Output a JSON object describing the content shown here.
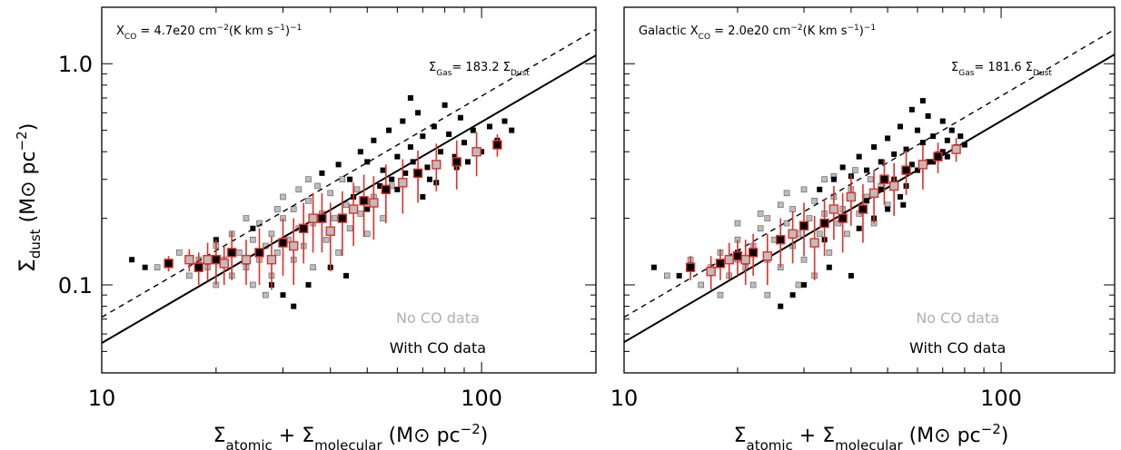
{
  "chart_data": [
    {
      "type": "scatter",
      "xscale": "log",
      "yscale": "log",
      "xlim": [
        10,
        200
      ],
      "ylim": [
        0.04,
        1.8
      ],
      "xticks": [
        10,
        100
      ],
      "xtick_labels": [
        "10",
        "100"
      ],
      "yticks": [
        0.1,
        1.0
      ],
      "ytick_labels": [
        "0.1",
        "1.0"
      ],
      "xlabel": "Σatomic + Σmolecular (M⊙ pc−2)",
      "ylabel": "Σdust (M⊙ pc−2)",
      "annotation": "XCO = 4.7e20 cm−2(K km s−1)−1",
      "fit_label": "ΣGas= 183.2 ΣDust",
      "fit_ratio": 183.2,
      "comparison_ratio": 140,
      "legend": [
        "No CO data",
        "With CO data"
      ],
      "series": [
        {
          "name": "No CO data",
          "points": [
            [
              14,
              0.12
            ],
            [
              16,
              0.14
            ],
            [
              17,
              0.11
            ],
            [
              18,
              0.13
            ],
            [
              19,
              0.12
            ],
            [
              20,
              0.15
            ],
            [
              21,
              0.13
            ],
            [
              22,
              0.11
            ],
            [
              22,
              0.17
            ],
            [
              23,
              0.14
            ],
            [
              24,
              0.12
            ],
            [
              25,
              0.16
            ],
            [
              26,
              0.13
            ],
            [
              26,
              0.19
            ],
            [
              27,
              0.15
            ],
            [
              28,
              0.11
            ],
            [
              28,
              0.17
            ],
            [
              29,
              0.14
            ],
            [
              30,
              0.2
            ],
            [
              31,
              0.16
            ],
            [
              32,
              0.13
            ],
            [
              32,
              0.22
            ],
            [
              33,
              0.18
            ],
            [
              34,
              0.15
            ],
            [
              35,
              0.24
            ],
            [
              36,
              0.19
            ],
            [
              36,
              0.12
            ],
            [
              38,
              0.21
            ],
            [
              39,
              0.16
            ],
            [
              40,
              0.26
            ],
            [
              41,
              0.2
            ],
            [
              42,
              0.14
            ],
            [
              44,
              0.23
            ],
            [
              45,
              0.18
            ],
            [
              47,
              0.27
            ],
            [
              48,
              0.21
            ],
            [
              50,
              0.17
            ],
            [
              52,
              0.25
            ],
            [
              55,
              0.2
            ],
            [
              58,
              0.28
            ],
            [
              24,
              0.2
            ],
            [
              30,
              0.25
            ],
            [
              35,
              0.3
            ],
            [
              20,
              0.1
            ],
            [
              27,
              0.09
            ],
            [
              43,
              0.3
            ],
            [
              37,
              0.28
            ],
            [
              33,
              0.27
            ],
            [
              29,
              0.22
            ],
            [
              25,
              0.1
            ]
          ]
        },
        {
          "name": "With CO data",
          "points": [
            [
              12,
              0.13
            ],
            [
              13,
              0.12
            ],
            [
              20,
              0.16
            ],
            [
              25,
              0.18
            ],
            [
              30,
              0.09
            ],
            [
              35,
              0.1
            ],
            [
              38,
              0.32
            ],
            [
              42,
              0.35
            ],
            [
              45,
              0.3
            ],
            [
              48,
              0.4
            ],
            [
              50,
              0.36
            ],
            [
              52,
              0.45
            ],
            [
              55,
              0.33
            ],
            [
              57,
              0.5
            ],
            [
              60,
              0.38
            ],
            [
              62,
              0.55
            ],
            [
              65,
              0.42
            ],
            [
              68,
              0.6
            ],
            [
              70,
              0.47
            ],
            [
              72,
              0.34
            ],
            [
              75,
              0.52
            ],
            [
              78,
              0.4
            ],
            [
              80,
              0.65
            ],
            [
              82,
              0.48
            ],
            [
              85,
              0.38
            ],
            [
              88,
              0.57
            ],
            [
              90,
              0.44
            ],
            [
              95,
              0.5
            ],
            [
              100,
              0.4
            ],
            [
              105,
              0.52
            ],
            [
              110,
              0.45
            ],
            [
              115,
              0.55
            ],
            [
              120,
              0.5
            ],
            [
              46,
              0.25
            ],
            [
              54,
              0.28
            ],
            [
              63,
              0.32
            ],
            [
              58,
              0.3
            ],
            [
              66,
              0.36
            ],
            [
              73,
              0.3
            ],
            [
              86,
              0.34
            ],
            [
              40,
              0.12
            ],
            [
              44,
              0.11
            ],
            [
              32,
              0.08
            ],
            [
              28,
              0.1
            ],
            [
              50,
              0.22
            ],
            [
              60,
              0.27
            ],
            [
              70,
              0.25
            ],
            [
              76,
              0.29
            ],
            [
              92,
              0.36
            ],
            [
              65,
              0.7
            ]
          ]
        }
      ],
      "binned": {
        "x": [
          15,
          17,
          18,
          19,
          20,
          21,
          22,
          24,
          26,
          28,
          30,
          32,
          34,
          36,
          38,
          40,
          43,
          46,
          49,
          52,
          56,
          62,
          68,
          76,
          86,
          97,
          110
        ],
        "y": [
          0.125,
          0.13,
          0.12,
          0.13,
          0.13,
          0.125,
          0.14,
          0.13,
          0.14,
          0.13,
          0.155,
          0.15,
          0.18,
          0.2,
          0.2,
          0.175,
          0.2,
          0.22,
          0.24,
          0.235,
          0.27,
          0.29,
          0.32,
          0.35,
          0.36,
          0.4,
          0.43
        ],
        "err": [
          0.01,
          0.015,
          0.02,
          0.025,
          0.03,
          0.025,
          0.035,
          0.03,
          0.04,
          0.035,
          0.045,
          0.05,
          0.055,
          0.06,
          0.06,
          0.06,
          0.065,
          0.07,
          0.075,
          0.075,
          0.08,
          0.08,
          0.085,
          0.085,
          0.09,
          0.09,
          0.05
        ]
      }
    },
    {
      "type": "scatter",
      "xscale": "log",
      "yscale": "log",
      "xlim": [
        10,
        200
      ],
      "ylim": [
        0.04,
        1.8
      ],
      "xticks": [
        10,
        100
      ],
      "xtick_labels": [
        "10",
        "100"
      ],
      "yticks": [
        0.1,
        1.0
      ],
      "ytick_labels": [
        "0.1",
        "1.0"
      ],
      "xlabel": "Σatomic + Σmolecular (M⊙ pc−2)",
      "ylabel": "",
      "annotation": "Galactic XCO = 2.0e20 cm−2(K km s−1)−1",
      "fit_label": "ΣGas= 181.6 ΣDust",
      "fit_ratio": 181.6,
      "comparison_ratio": 140,
      "legend": [
        "No CO data",
        "With CO data"
      ],
      "series": [
        {
          "name": "No CO data",
          "points": [
            [
              13,
              0.11
            ],
            [
              15,
              0.13
            ],
            [
              16,
              0.1
            ],
            [
              17,
              0.12
            ],
            [
              18,
              0.14
            ],
            [
              19,
              0.11
            ],
            [
              20,
              0.13
            ],
            [
              20,
              0.16
            ],
            [
              21,
              0.12
            ],
            [
              22,
              0.15
            ],
            [
              23,
              0.18
            ],
            [
              24,
              0.13
            ],
            [
              24,
              0.2
            ],
            [
              25,
              0.16
            ],
            [
              26,
              0.12
            ],
            [
              27,
              0.19
            ],
            [
              28,
              0.15
            ],
            [
              28,
              0.22
            ],
            [
              29,
              0.17
            ],
            [
              30,
              0.13
            ],
            [
              31,
              0.2
            ],
            [
              32,
              0.24
            ],
            [
              33,
              0.17
            ],
            [
              34,
              0.21
            ],
            [
              35,
              0.14
            ],
            [
              36,
              0.25
            ],
            [
              37,
              0.19
            ],
            [
              38,
              0.22
            ],
            [
              39,
              0.17
            ],
            [
              40,
              0.27
            ],
            [
              42,
              0.21
            ],
            [
              44,
              0.25
            ],
            [
              46,
              0.19
            ],
            [
              48,
              0.28
            ],
            [
              50,
              0.23
            ],
            [
              22,
              0.1
            ],
            [
              26,
              0.23
            ],
            [
              30,
              0.27
            ],
            [
              34,
              0.3
            ],
            [
              18,
              0.09
            ],
            [
              24,
              0.09
            ],
            [
              36,
              0.31
            ],
            [
              41,
              0.33
            ],
            [
              45,
              0.3
            ],
            [
              52,
              0.29
            ],
            [
              29,
              0.1
            ],
            [
              27,
              0.26
            ],
            [
              23,
              0.21
            ],
            [
              32,
              0.11
            ],
            [
              20,
              0.19
            ]
          ]
        },
        {
          "name": "With CO data",
          "points": [
            [
              12,
              0.12
            ],
            [
              14,
              0.11
            ],
            [
              20,
              0.14
            ],
            [
              26,
              0.08
            ],
            [
              30,
              0.1
            ],
            [
              33,
              0.27
            ],
            [
              36,
              0.3
            ],
            [
              38,
              0.34
            ],
            [
              40,
              0.31
            ],
            [
              42,
              0.38
            ],
            [
              44,
              0.33
            ],
            [
              46,
              0.42
            ],
            [
              48,
              0.36
            ],
            [
              50,
              0.46
            ],
            [
              52,
              0.39
            ],
            [
              54,
              0.52
            ],
            [
              56,
              0.41
            ],
            [
              58,
              0.35
            ],
            [
              60,
              0.5
            ],
            [
              62,
              0.44
            ],
            [
              64,
              0.58
            ],
            [
              66,
              0.47
            ],
            [
              68,
              0.39
            ],
            [
              70,
              0.55
            ],
            [
              72,
              0.45
            ],
            [
              74,
              0.5
            ],
            [
              76,
              0.42
            ],
            [
              78,
              0.47
            ],
            [
              80,
              0.43
            ],
            [
              44,
              0.24
            ],
            [
              48,
              0.27
            ],
            [
              52,
              0.3
            ],
            [
              56,
              0.28
            ],
            [
              60,
              0.33
            ],
            [
              64,
              0.36
            ],
            [
              38,
              0.2
            ],
            [
              35,
              0.12
            ],
            [
              40,
              0.11
            ],
            [
              46,
              0.2
            ],
            [
              54,
              0.25
            ],
            [
              58,
              0.62
            ],
            [
              62,
              0.68
            ],
            [
              66,
              0.36
            ],
            [
              70,
              0.4
            ],
            [
              50,
              0.22
            ],
            [
              42,
              0.18
            ],
            [
              34,
              0.16
            ],
            [
              28,
              0.09
            ],
            [
              72,
              0.38
            ],
            [
              55,
              0.23
            ]
          ]
        }
      ],
      "binned": {
        "x": [
          15,
          17,
          18,
          19,
          20,
          21,
          22,
          24,
          26,
          28,
          30,
          32,
          34,
          36,
          38,
          40,
          43,
          46,
          49,
          52,
          56,
          62,
          68,
          76
        ],
        "y": [
          0.12,
          0.115,
          0.125,
          0.13,
          0.135,
          0.13,
          0.14,
          0.135,
          0.16,
          0.17,
          0.185,
          0.155,
          0.19,
          0.22,
          0.2,
          0.25,
          0.22,
          0.26,
          0.3,
          0.28,
          0.33,
          0.35,
          0.38,
          0.41
        ],
        "err": [
          0.015,
          0.02,
          0.02,
          0.025,
          0.025,
          0.03,
          0.03,
          0.035,
          0.04,
          0.045,
          0.05,
          0.05,
          0.055,
          0.06,
          0.06,
          0.065,
          0.065,
          0.07,
          0.07,
          0.075,
          0.075,
          0.08,
          0.06,
          0.05
        ]
      }
    }
  ]
}
